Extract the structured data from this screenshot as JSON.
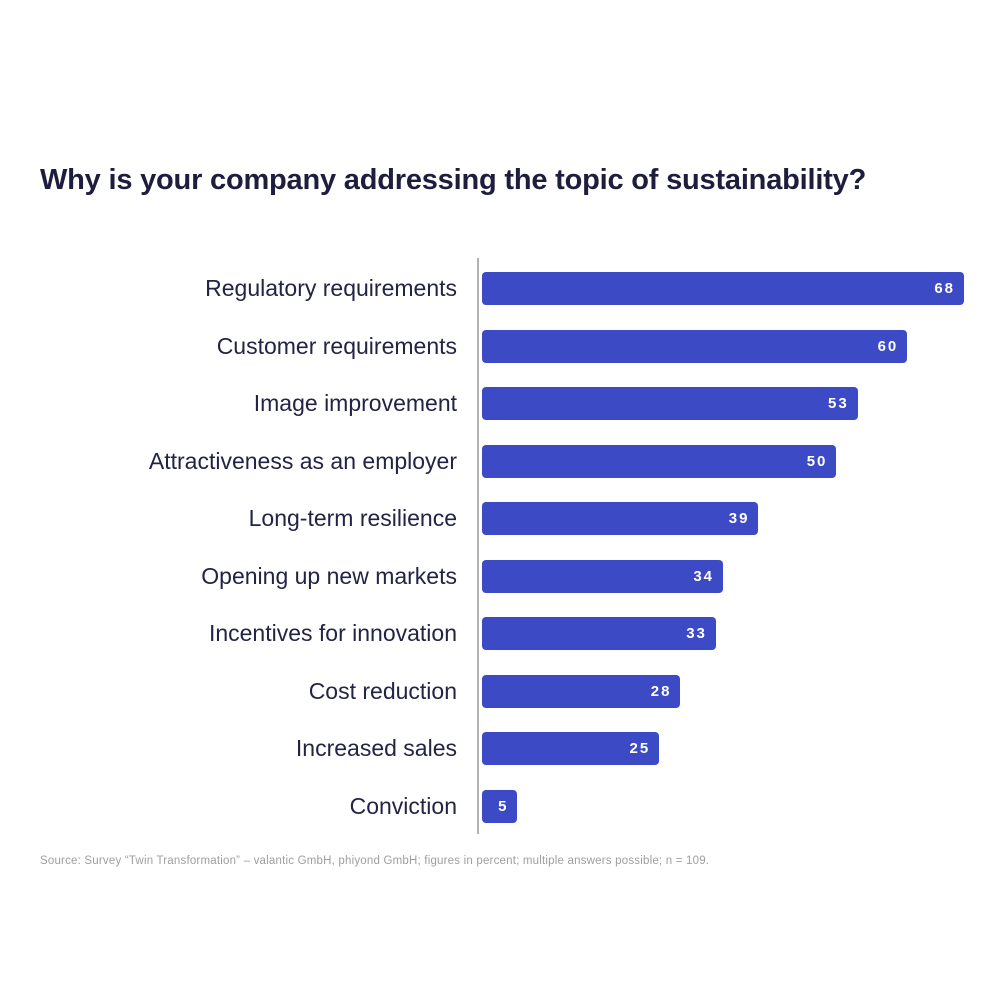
{
  "title": "Why is your company addressing the topic of sustainability?",
  "source_note": "Source: Survey “Twin Transformation” – valantic GmbH, phiyond GmbH; figures in percent; multiple answers possible; n = 109.",
  "colors": {
    "background": "#ffffff",
    "bar": "#3d4ac6",
    "title_text": "#1d1d3e",
    "label_text": "#232345",
    "value_text": "#ffffff",
    "axis_line": "#b3b3b3",
    "source_text": "#9e9e9e"
  },
  "chart_data": {
    "type": "bar",
    "orientation": "horizontal",
    "title": "Why is your company addressing the topic of sustainability?",
    "xlabel": "",
    "ylabel": "",
    "unit": "percent",
    "xlim": [
      0,
      68
    ],
    "grid": false,
    "legend": false,
    "value_labels": "inside-end",
    "categories": [
      "Regulatory requirements",
      "Customer requirements",
      "Image improvement",
      "Attractiveness as an employer",
      "Long-term resilience",
      "Opening up new markets",
      "Incentives for innovation",
      "Cost reduction",
      "Increased sales",
      "Conviction"
    ],
    "values": [
      68,
      60,
      53,
      50,
      39,
      34,
      33,
      28,
      25,
      5
    ]
  }
}
